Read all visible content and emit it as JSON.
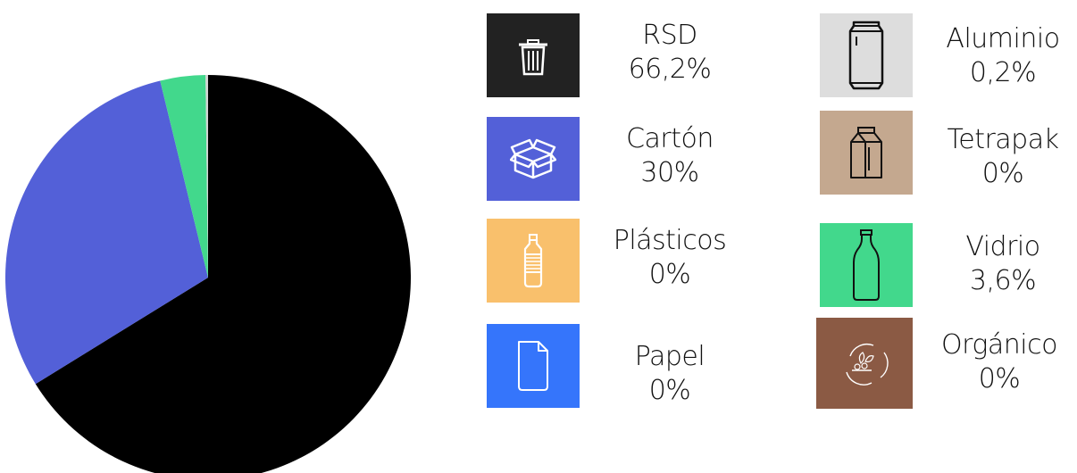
{
  "chart_data": {
    "type": "pie",
    "series": [
      {
        "label": "RSD",
        "value": 66.2,
        "value_label": "66,2%",
        "color": "#000000",
        "box_color": "#222222",
        "icon": "trash-can-icon"
      },
      {
        "label": "Cartón",
        "value": 30,
        "value_label": "30%",
        "color": "#5360d8",
        "box_color": "#5360d8",
        "icon": "open-box-icon"
      },
      {
        "label": "Plásticos",
        "value": 0,
        "value_label": "0%",
        "color": "#f9c06c",
        "box_color": "#f9c06c",
        "icon": "plastic-bottle-icon"
      },
      {
        "label": "Papel",
        "value": 0,
        "value_label": "0%",
        "color": "#3575fb",
        "box_color": "#3575fb",
        "icon": "paper-sheet-icon"
      },
      {
        "label": "Aluminio",
        "value": 0.2,
        "value_label": "0,2%",
        "color": "#d3d3d3",
        "box_color": "#dddddd",
        "icon": "soda-can-icon"
      },
      {
        "label": "Tetrapak",
        "value": 0,
        "value_label": "0%",
        "color": "#c4a88f",
        "box_color": "#c4a88f",
        "icon": "milk-carton-icon"
      },
      {
        "label": "Vidrio",
        "value": 3.6,
        "value_label": "3,6%",
        "color": "#42d88c",
        "box_color": "#42d88c",
        "icon": "glass-bottle-icon"
      },
      {
        "label": "Orgánico",
        "value": 0,
        "value_label": "0%",
        "color": "#8b5a44",
        "box_color": "#8b5a44",
        "icon": "compost-icon"
      }
    ],
    "pie_order": [
      "RSD",
      "Cartón",
      "Vidrio",
      "Aluminio"
    ],
    "legend_placement": "right"
  }
}
